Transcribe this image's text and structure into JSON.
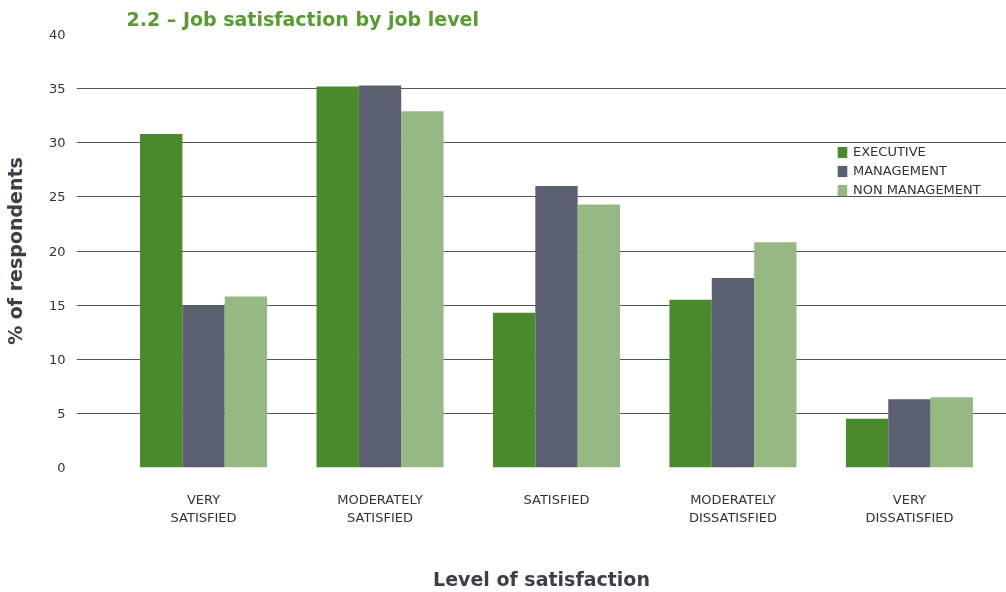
{
  "chart_data": {
    "type": "bar",
    "title": "2.2 – Job satisfaction by job level",
    "xlabel": "Level of satisfaction",
    "ylabel": "% of respondents",
    "categories": [
      "VERY SATISFIED",
      "MODERATELY SATISFIED",
      "SATISFIED",
      "MODERATELY DISSATISFIED",
      "VERY DISSATISFIED"
    ],
    "series": [
      {
        "name": "EXECUTIVE",
        "color": "#4a8a2c",
        "values": [
          30.8,
          35.2,
          14.3,
          15.5,
          4.5
        ]
      },
      {
        "name": "MANAGEMENT",
        "color": "#5a6070",
        "values": [
          15.0,
          35.3,
          26.0,
          17.5,
          6.3
        ]
      },
      {
        "name": "NON MANAGEMENT",
        "color": "#96b882",
        "values": [
          15.8,
          32.9,
          24.3,
          20.8,
          6.5
        ]
      }
    ],
    "ylim": [
      0,
      40
    ],
    "yticks": [
      0,
      5,
      10,
      15,
      20,
      25,
      30,
      35,
      40
    ],
    "grid": "y",
    "legend": "top right"
  }
}
